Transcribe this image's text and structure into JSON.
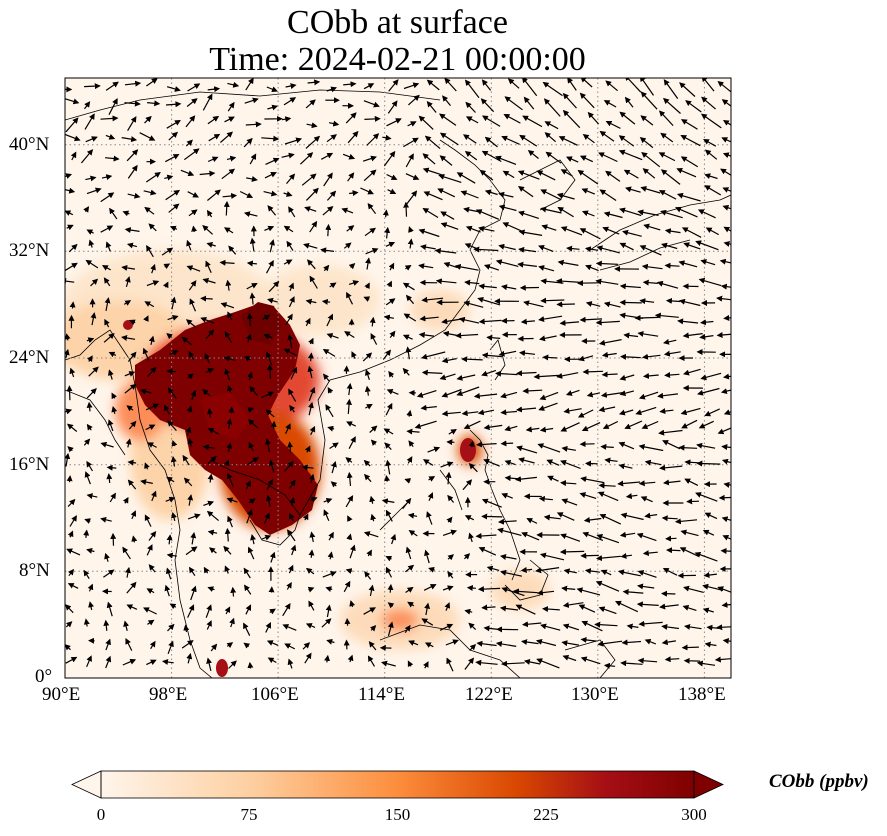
{
  "title": {
    "line1": "CObb at surface",
    "line2": "Time: 2024-02-21 00:00:00"
  },
  "map": {
    "extent": {
      "lon_min": 90,
      "lon_max": 140,
      "lat_min": 0,
      "lat_max": 45
    },
    "lon_ticks": [
      "90°E",
      "98°E",
      "106°E",
      "114°E",
      "122°E",
      "130°E",
      "138°E"
    ],
    "lat_ticks": [
      "0°",
      "8°N",
      "16°N",
      "24°N",
      "32°N",
      "40°N"
    ],
    "gridlines": "dotted",
    "variable": "CObb",
    "overlay": "wind vectors"
  },
  "colorbar": {
    "label": "CObb (ppbv)",
    "ticks": [
      "0",
      "75",
      "150",
      "225",
      "300"
    ],
    "range": [
      0,
      300
    ],
    "extend": "both",
    "colormap": [
      "#fff5eb",
      "#fdd0a2",
      "#fd8d3c",
      "#d94801",
      "#a50f15",
      "#7f0000"
    ]
  }
}
